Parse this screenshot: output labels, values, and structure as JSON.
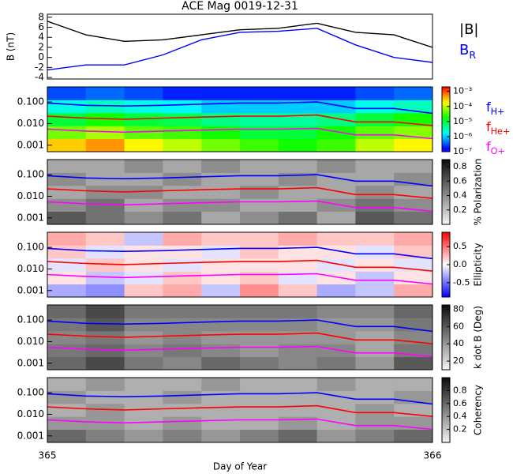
{
  "chart_data": [
    {
      "type": "line",
      "title": "ACE Mag 0019-12-31",
      "ylabel": "B (nT)",
      "x": [
        365,
        365.1,
        365.2,
        365.3,
        365.4,
        365.5,
        365.6,
        365.7,
        365.8,
        365.9,
        366
      ],
      "series": [
        {
          "name": "|B|",
          "color": "#000000",
          "values": [
            7.2,
            4.5,
            3.2,
            3.5,
            4.5,
            5.5,
            5.8,
            6.8,
            5,
            4.5,
            2
          ]
        },
        {
          "name": "B_R",
          "color": "#0000ff",
          "values": [
            -2.5,
            -1.5,
            -1.5,
            0.5,
            3.5,
            5,
            5.2,
            5.8,
            2.5,
            0,
            -1
          ]
        }
      ],
      "ylim": [
        -4.3,
        8.6
      ],
      "yticks": [
        -4,
        -2,
        0,
        2,
        4,
        6,
        8
      ]
    },
    {
      "type": "heatmap",
      "colormap": "rainbow",
      "clog": true,
      "clim": [
        1e-07,
        0.002
      ],
      "cticks": [
        {
          "value": 0.001,
          "label": "10⁻³"
        },
        {
          "value": 0.0001,
          "label": "10⁻⁴"
        },
        {
          "value": 1e-05,
          "label": "10⁻⁵"
        },
        {
          "value": 1e-06,
          "label": "10⁻⁶"
        },
        {
          "value": 1e-07,
          "label": "10⁻⁷"
        }
      ],
      "ylog": true,
      "ylim": [
        0.0005,
        0.5
      ],
      "yticks": [
        {
          "value": 0.1,
          "label": "0.100"
        },
        {
          "value": 0.01,
          "label": "0.010"
        },
        0.001
      ],
      "xbins": [
        365,
        365.1,
        365.2,
        365.3,
        365.4,
        365.5,
        365.6,
        365.7,
        365.8,
        365.9,
        366
      ],
      "ybins": [
        0.0005,
        0.002,
        0.0079,
        0.0316,
        0.126,
        0.5
      ],
      "values": [
        [
          0.0003,
          0.0005,
          0.0002,
          0.0001,
          5e-05,
          3e-05,
          2e-05,
          3e-05,
          0.0001,
          0.0002
        ],
        [
          5e-05,
          8e-05,
          4e-05,
          3e-05,
          2e-05,
          1e-05,
          1e-05,
          2e-05,
          4e-05,
          6e-05
        ],
        [
          1e-05,
          2e-05,
          1e-05,
          8e-06,
          5e-06,
          4e-06,
          4e-06,
          5e-06,
          1e-05,
          2e-05
        ],
        [
          2e-06,
          3e-06,
          2e-06,
          1.5e-06,
          1e-06,
          1e-06,
          1e-06,
          1e-06,
          2e-06,
          3e-06
        ],
        [
          3e-07,
          4e-07,
          3e-07,
          2e-07,
          2e-07,
          2e-07,
          2e-07,
          2e-07,
          3e-07,
          4e-07
        ]
      ],
      "x": [
        365,
        365.1,
        365.2,
        365.3,
        365.4,
        365.5,
        365.6,
        365.7,
        365.8,
        365.9,
        366
      ],
      "series": [
        {
          "name": "f_H+",
          "color": "#0000ff",
          "values": [
            0.09,
            0.07,
            0.065,
            0.07,
            0.08,
            0.09,
            0.09,
            0.1,
            0.05,
            0.05,
            0.03
          ]
        },
        {
          "name": "f_He+",
          "color": "#ff0000",
          "values": [
            0.022,
            0.018,
            0.016,
            0.018,
            0.02,
            0.022,
            0.022,
            0.025,
            0.012,
            0.012,
            0.008
          ]
        },
        {
          "name": "f_O+",
          "color": "#ff00ff",
          "values": [
            0.0055,
            0.0045,
            0.004,
            0.0045,
            0.005,
            0.0055,
            0.0055,
            0.006,
            0.003,
            0.003,
            0.002
          ]
        }
      ]
    },
    {
      "type": "heatmap",
      "colormap": "gray",
      "clim": [
        0,
        0.9
      ],
      "cticks": [
        0.2,
        0.4,
        0.6,
        0.8
      ],
      "colorbar_label": "% Polarization",
      "ylog": true,
      "ylim": [
        0.0005,
        0.5
      ],
      "yticks": [
        {
          "value": 0.1,
          "label": "0.100"
        },
        {
          "value": 0.01,
          "label": "0.010"
        },
        0.001
      ],
      "xbins": [
        365,
        365.1,
        365.2,
        365.3,
        365.4,
        365.5,
        365.6,
        365.7,
        365.8,
        365.9,
        366
      ],
      "ybins": [
        0.0005,
        0.002,
        0.0079,
        0.0316,
        0.126,
        0.5
      ],
      "values": [
        [
          0.6,
          0.5,
          0.4,
          0.5,
          0.3,
          0.4,
          0.5,
          0.3,
          0.6,
          0.5
        ],
        [
          0.4,
          0.5,
          0.3,
          0.4,
          0.4,
          0.3,
          0.3,
          0.4,
          0.5,
          0.4
        ],
        [
          0.3,
          0.4,
          0.4,
          0.3,
          0.3,
          0.4,
          0.3,
          0.3,
          0.4,
          0.3
        ],
        [
          0.4,
          0.3,
          0.3,
          0.4,
          0.3,
          0.3,
          0.4,
          0.3,
          0.3,
          0.4
        ],
        [
          0.3,
          0.3,
          0.4,
          0.3,
          0.4,
          0.3,
          0.3,
          0.4,
          0.3,
          0.3
        ]
      ]
    },
    {
      "type": "heatmap",
      "colormap": "bwr",
      "clim": [
        -0.9,
        0.9
      ],
      "cticks": [
        0.5,
        {
          "value": 0,
          "label": "0.0"
        },
        -0.5
      ],
      "colorbar_label": "Ellipticity",
      "ylog": true,
      "ylim": [
        0.0005,
        0.5
      ],
      "yticks": [
        {
          "value": 0.1,
          "label": "0.100"
        },
        {
          "value": 0.01,
          "label": "0.010"
        },
        0.001
      ],
      "xbins": [
        365,
        365.1,
        365.2,
        365.3,
        365.4,
        365.5,
        365.6,
        365.7,
        365.8,
        365.9,
        366
      ],
      "ybins": [
        0.0005,
        0.002,
        0.0079,
        0.0316,
        0.126,
        0.5
      ],
      "values": [
        [
          -0.3,
          -0.4,
          0.2,
          0.3,
          -0.2,
          0.4,
          0.2,
          -0.3,
          -0.2,
          0.3
        ],
        [
          0.1,
          -0.2,
          -0.1,
          0.2,
          0.1,
          0.2,
          -0.1,
          0.1,
          -0.2,
          0.1
        ],
        [
          -0.1,
          0.2,
          0.1,
          -0.1,
          0.1,
          0.1,
          0.1,
          -0.1,
          0.1,
          -0.1
        ],
        [
          0.2,
          -0.1,
          0.1,
          0.1,
          -0.1,
          0.2,
          0.1,
          0.1,
          -0.1,
          0.2
        ],
        [
          0.3,
          0.2,
          -0.2,
          0.3,
          0.2,
          0.2,
          0.3,
          0.2,
          0.2,
          0.3
        ]
      ]
    },
    {
      "type": "heatmap",
      "colormap": "gray",
      "clim": [
        10,
        85
      ],
      "cticks": [
        20,
        40,
        60,
        80
      ],
      "colorbar_label": "k dot B (Deg)",
      "ylog": true,
      "ylim": [
        0.0005,
        0.5
      ],
      "yticks": [
        {
          "value": 0.1,
          "label": "0.100"
        },
        {
          "value": 0.01,
          "label": "0.010"
        },
        0.001
      ],
      "xbins": [
        365,
        365.1,
        365.2,
        365.3,
        365.4,
        365.5,
        365.6,
        365.7,
        365.8,
        365.9,
        366
      ],
      "ybins": [
        0.0005,
        0.002,
        0.0079,
        0.0316,
        0.126,
        0.5
      ],
      "values": [
        [
          55,
          65,
          50,
          45,
          55,
          50,
          45,
          50,
          40,
          60
        ],
        [
          50,
          55,
          45,
          50,
          45,
          40,
          45,
          45,
          35,
          50
        ],
        [
          45,
          50,
          40,
          45,
          40,
          40,
          40,
          40,
          35,
          45
        ],
        [
          50,
          60,
          45,
          45,
          45,
          45,
          45,
          40,
          40,
          50
        ],
        [
          55,
          65,
          50,
          50,
          50,
          50,
          50,
          45,
          45,
          55
        ]
      ]
    },
    {
      "type": "heatmap",
      "colormap": "gray",
      "clim": [
        0,
        1
      ],
      "cticks": [
        0.2,
        0.4,
        0.6,
        0.8
      ],
      "colorbar_label": "Coherency",
      "ylog": true,
      "ylim": [
        0.0005,
        0.5
      ],
      "yticks": [
        {
          "value": 0.1,
          "label": "0.100"
        },
        {
          "value": 0.01,
          "label": "0.010"
        },
        0.001
      ],
      "xbins": [
        365,
        365.1,
        365.2,
        365.3,
        365.4,
        365.5,
        365.6,
        365.7,
        365.8,
        365.9,
        366
      ],
      "ybins": [
        0.0005,
        0.002,
        0.0079,
        0.0316,
        0.126,
        0.5
      ],
      "values": [
        [
          0.6,
          0.5,
          0.4,
          0.5,
          0.4,
          0.5,
          0.6,
          0.4,
          0.5,
          0.6
        ],
        [
          0.4,
          0.4,
          0.3,
          0.4,
          0.3,
          0.3,
          0.4,
          0.3,
          0.4,
          0.4
        ],
        [
          0.3,
          0.4,
          0.3,
          0.3,
          0.3,
          0.3,
          0.3,
          0.3,
          0.4,
          0.3
        ],
        [
          0.4,
          0.3,
          0.3,
          0.4,
          0.3,
          0.3,
          0.3,
          0.3,
          0.3,
          0.4
        ],
        [
          0.3,
          0.4,
          0.3,
          0.3,
          0.4,
          0.3,
          0.3,
          0.4,
          0.3,
          0.3
        ]
      ],
      "xlim": [
        365,
        366
      ],
      "xticks": [
        365,
        366
      ],
      "xlabel": "Day of Year"
    }
  ]
}
